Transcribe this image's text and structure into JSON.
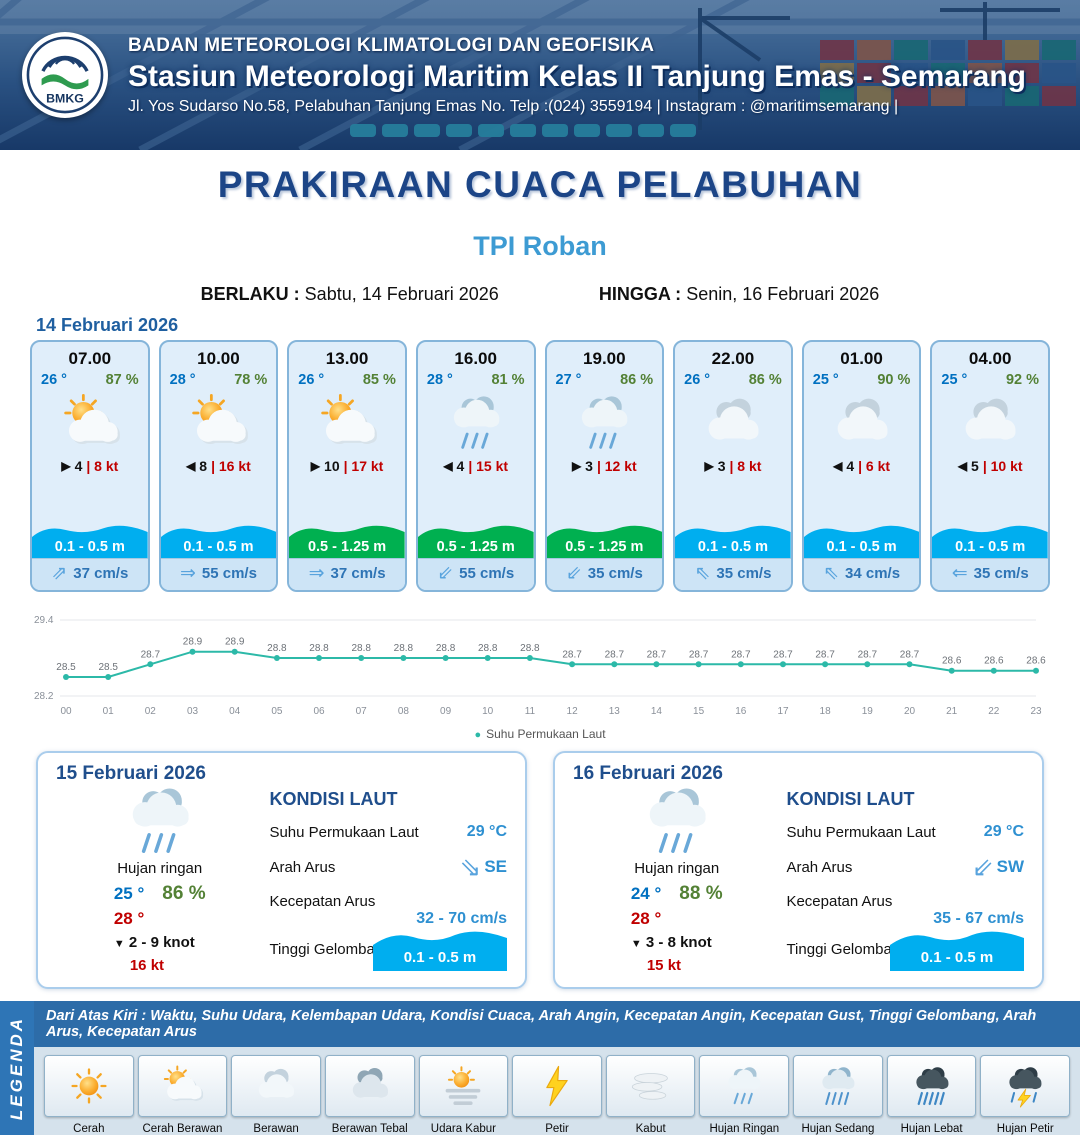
{
  "header": {
    "logo_text": "BMKG",
    "line1": "BADAN METEOROLOGI KLIMATOLOGI DAN GEOFISIKA",
    "line2": "Stasiun Meteorologi Maritim Kelas II Tanjung Emas - Semarang",
    "line3": "Jl. Yos Sudarso No.58, Pelabuhan Tanjung Emas No. Telp :(024) 3559194 | Instagram : @maritimsemarang |"
  },
  "title": {
    "main": "PRAKIRAAN CUACA PELABUHAN",
    "location": "TPI Roban",
    "valid_label": "BERLAKU :",
    "valid_value": "Sabtu, 14 Februari 2026",
    "until_label": "HINGGA :",
    "until_value": "Senin, 16 Februari 2026"
  },
  "forecast": {
    "date": "14 Februari 2026",
    "cards": [
      {
        "time": "07.00",
        "temp": "26 °",
        "humidity": "87 %",
        "icon": "cerah-berawan",
        "wind_arrow": "▶",
        "wind_speed": "4",
        "gust": "| 8 kt",
        "wave": "0.1 - 0.5 m",
        "wave_level": "low",
        "current_arrow": "⇗",
        "current": "37 cm/s"
      },
      {
        "time": "10.00",
        "temp": "28 °",
        "humidity": "78 %",
        "icon": "cerah-berawan",
        "wind_arrow": "◀",
        "wind_speed": "8",
        "gust": "| 16 kt",
        "wave": "0.1 - 0.5 m",
        "wave_level": "low",
        "current_arrow": "⇒",
        "current": "55 cm/s"
      },
      {
        "time": "13.00",
        "temp": "26 °",
        "humidity": "85 %",
        "icon": "cerah-berawan",
        "wind_arrow": "▶",
        "wind_speed": "10",
        "gust": "| 17 kt",
        "wave": "0.5 - 1.25 m",
        "wave_level": "mid",
        "current_arrow": "⇒",
        "current": "37 cm/s"
      },
      {
        "time": "16.00",
        "temp": "28 °",
        "humidity": "81 %",
        "icon": "hujan-ringan",
        "wind_arrow": "◀",
        "wind_speed": "4",
        "gust": "| 15 kt",
        "wave": "0.5 - 1.25 m",
        "wave_level": "mid",
        "current_arrow": "⇙",
        "current": "55 cm/s"
      },
      {
        "time": "19.00",
        "temp": "27 °",
        "humidity": "86 %",
        "icon": "hujan-ringan",
        "wind_arrow": "▶",
        "wind_speed": "3",
        "gust": "| 12 kt",
        "wave": "0.5 - 1.25 m",
        "wave_level": "mid",
        "current_arrow": "⇙",
        "current": "35 cm/s"
      },
      {
        "time": "22.00",
        "temp": "26 °",
        "humidity": "86 %",
        "icon": "berawan",
        "wind_arrow": "▶",
        "wind_speed": "3",
        "gust": "| 8 kt",
        "wave": "0.1 - 0.5 m",
        "wave_level": "low",
        "current_arrow": "⇖",
        "current": "35 cm/s"
      },
      {
        "time": "01.00",
        "temp": "25 °",
        "humidity": "90 %",
        "icon": "berawan",
        "wind_arrow": "◀",
        "wind_speed": "4",
        "gust": "| 6 kt",
        "wave": "0.1 - 0.5 m",
        "wave_level": "low",
        "current_arrow": "⇖",
        "current": "34 cm/s"
      },
      {
        "time": "04.00",
        "temp": "25 °",
        "humidity": "92 %",
        "icon": "berawan",
        "wind_arrow": "◀",
        "wind_speed": "5",
        "gust": "| 10 kt",
        "wave": "0.1 - 0.5 m",
        "wave_level": "low",
        "current_arrow": "⇐",
        "current": "35 cm/s"
      }
    ]
  },
  "chart_data": {
    "type": "line",
    "x": [
      "00",
      "01",
      "02",
      "03",
      "04",
      "05",
      "06",
      "07",
      "08",
      "09",
      "10",
      "11",
      "12",
      "13",
      "14",
      "15",
      "16",
      "17",
      "18",
      "19",
      "20",
      "21",
      "22",
      "23"
    ],
    "values": [
      28.5,
      28.5,
      28.7,
      28.9,
      28.9,
      28.8,
      28.8,
      28.8,
      28.8,
      28.8,
      28.8,
      28.8,
      28.7,
      28.7,
      28.7,
      28.7,
      28.7,
      28.7,
      28.7,
      28.7,
      28.7,
      28.6,
      28.6,
      28.6
    ],
    "ylim": [
      28.2,
      29.4
    ],
    "yticks": [
      29.4,
      28.2
    ],
    "legend": "Suhu Permukaan Laut",
    "legend_marker": "●",
    "line_color": "#2cb9a8",
    "grid": true,
    "legend_position": "bottom-center"
  },
  "daily": [
    {
      "date": "15 Februari 2026",
      "icon": "hujan-ringan",
      "condition": "Hujan ringan",
      "temp_min": "25 °",
      "humidity": "86 %",
      "temp_max": "28 °",
      "wind_arrow": "▼",
      "wind_range": "2 - 9 knot",
      "gust": "16 kt",
      "sea_title": "KONDISI LAUT",
      "sst_label": "Suhu Permukaan Laut",
      "sst_value": "29 °C",
      "current_dir_label": "Arah Arus",
      "current_dir_arrow": "⇘",
      "current_dir": "SE",
      "current_speed_label": "Kecepatan Arus",
      "current_speed": "32 - 70 cm/s",
      "wave_label": "Tinggi Gelombang",
      "wave_value": "0.1 - 0.5 m"
    },
    {
      "date": "16 Februari 2026",
      "icon": "hujan-ringan",
      "condition": "Hujan ringan",
      "temp_min": "24 °",
      "humidity": "88 %",
      "temp_max": "28 °",
      "wind_arrow": "▼",
      "wind_range": "3 - 8 knot",
      "gust": "15 kt",
      "sea_title": "KONDISI LAUT",
      "sst_label": "Suhu Permukaan Laut",
      "sst_value": "29 °C",
      "current_dir_label": "Arah Arus",
      "current_dir_arrow": "⇙",
      "current_dir": "SW",
      "current_speed_label": "Kecepatan Arus",
      "current_speed": "35 - 67 cm/s",
      "wave_label": "Tinggi Gelombang",
      "wave_value": "0.1 - 0.5 m"
    }
  ],
  "legend": {
    "vertical_label": "LEGENDA",
    "description": "Dari Atas Kiri : Waktu, Suhu Udara, Kelembapan Udara, Kondisi Cuaca, Arah Angin, Kecepatan Angin, Kecepatan Gust, Tinggi Gelombang, Arah Arus, Kecepatan Arus",
    "items": [
      {
        "label": "Cerah",
        "icon": "cerah"
      },
      {
        "label": "Cerah Berawan",
        "icon": "cerah-berawan"
      },
      {
        "label": "Berawan",
        "icon": "berawan"
      },
      {
        "label": "Berawan Tebal",
        "icon": "berawan-tebal"
      },
      {
        "label": "Udara Kabur",
        "icon": "udara-kabur"
      },
      {
        "label": "Petir",
        "icon": "petir"
      },
      {
        "label": "Kabut",
        "icon": "kabut"
      },
      {
        "label": "Hujan Ringan",
        "icon": "hujan-ringan"
      },
      {
        "label": "Hujan Sedang",
        "icon": "hujan-sedang"
      },
      {
        "label": "Hujan Lebat",
        "icon": "hujan-lebat"
      },
      {
        "label": "Hujan Petir",
        "icon": "hujan-petir"
      }
    ]
  },
  "colors": {
    "header_bg": "#16355f",
    "title": "#1c4587",
    "location": "#3d9bd3",
    "wave_low": "#00aeef",
    "wave_mid": "#00b050",
    "temp_blue": "#0070c0",
    "humidity_green": "#538135",
    "gust_red": "#c00000",
    "chart_line": "#2cb9a8"
  }
}
